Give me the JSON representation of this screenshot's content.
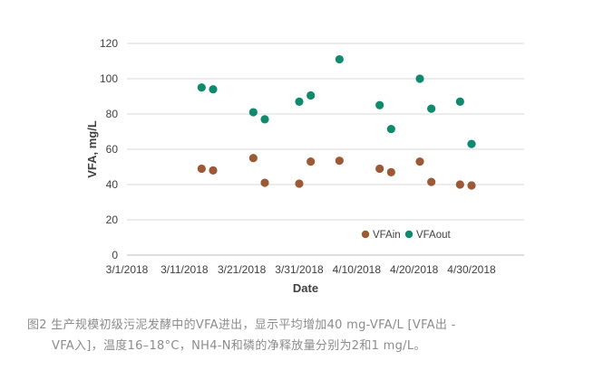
{
  "chart_data": {
    "type": "scatter",
    "xlabel": "Date",
    "ylabel": "VFA, mg/L",
    "x_ticks": [
      "3/1/2018",
      "3/11/2018",
      "3/21/2018",
      "3/31/2018",
      "4/10/2018",
      "4/20/2018",
      "4/30/2018"
    ],
    "y_ticks": [
      "0",
      "20",
      "40",
      "60",
      "80",
      "100",
      "120"
    ],
    "xlim": [
      "2018-03-01",
      "2018-04-30"
    ],
    "ylim": [
      0,
      120
    ],
    "grid": "horizontal",
    "legend_position": "bottom-right",
    "series": [
      {
        "name": "VFAin",
        "color": "#9b5a35",
        "points": [
          {
            "x": "2018-03-14",
            "y": 49
          },
          {
            "x": "2018-03-16",
            "y": 48
          },
          {
            "x": "2018-03-23",
            "y": 55
          },
          {
            "x": "2018-03-25",
            "y": 41
          },
          {
            "x": "2018-03-31",
            "y": 40.5
          },
          {
            "x": "2018-04-02",
            "y": 53
          },
          {
            "x": "2018-04-07",
            "y": 53.5
          },
          {
            "x": "2018-04-14",
            "y": 49
          },
          {
            "x": "2018-04-16",
            "y": 47
          },
          {
            "x": "2018-04-21",
            "y": 53
          },
          {
            "x": "2018-04-23",
            "y": 41.5
          },
          {
            "x": "2018-04-28",
            "y": 40
          },
          {
            "x": "2018-04-30",
            "y": 39.5
          }
        ]
      },
      {
        "name": "VFAout",
        "color": "#0f8a6c",
        "points": [
          {
            "x": "2018-03-14",
            "y": 95
          },
          {
            "x": "2018-03-16",
            "y": 94
          },
          {
            "x": "2018-03-23",
            "y": 81
          },
          {
            "x": "2018-03-25",
            "y": 77
          },
          {
            "x": "2018-03-31",
            "y": 87
          },
          {
            "x": "2018-04-02",
            "y": 90.5
          },
          {
            "x": "2018-04-07",
            "y": 111
          },
          {
            "x": "2018-04-14",
            "y": 85
          },
          {
            "x": "2018-04-16",
            "y": 71.5
          },
          {
            "x": "2018-04-21",
            "y": 100
          },
          {
            "x": "2018-04-23",
            "y": 83
          },
          {
            "x": "2018-04-28",
            "y": 87
          },
          {
            "x": "2018-04-30",
            "y": 63
          }
        ]
      }
    ]
  },
  "caption": {
    "line1": "图2  生产规模初级污泥发酵中的VFA进出，显示平均增加40 mg-VFA/L [VFA出 -",
    "line2": "VFA入]，温度16–18°C，NH4-N和磷的净释放量分别为2和1 mg/L。"
  }
}
